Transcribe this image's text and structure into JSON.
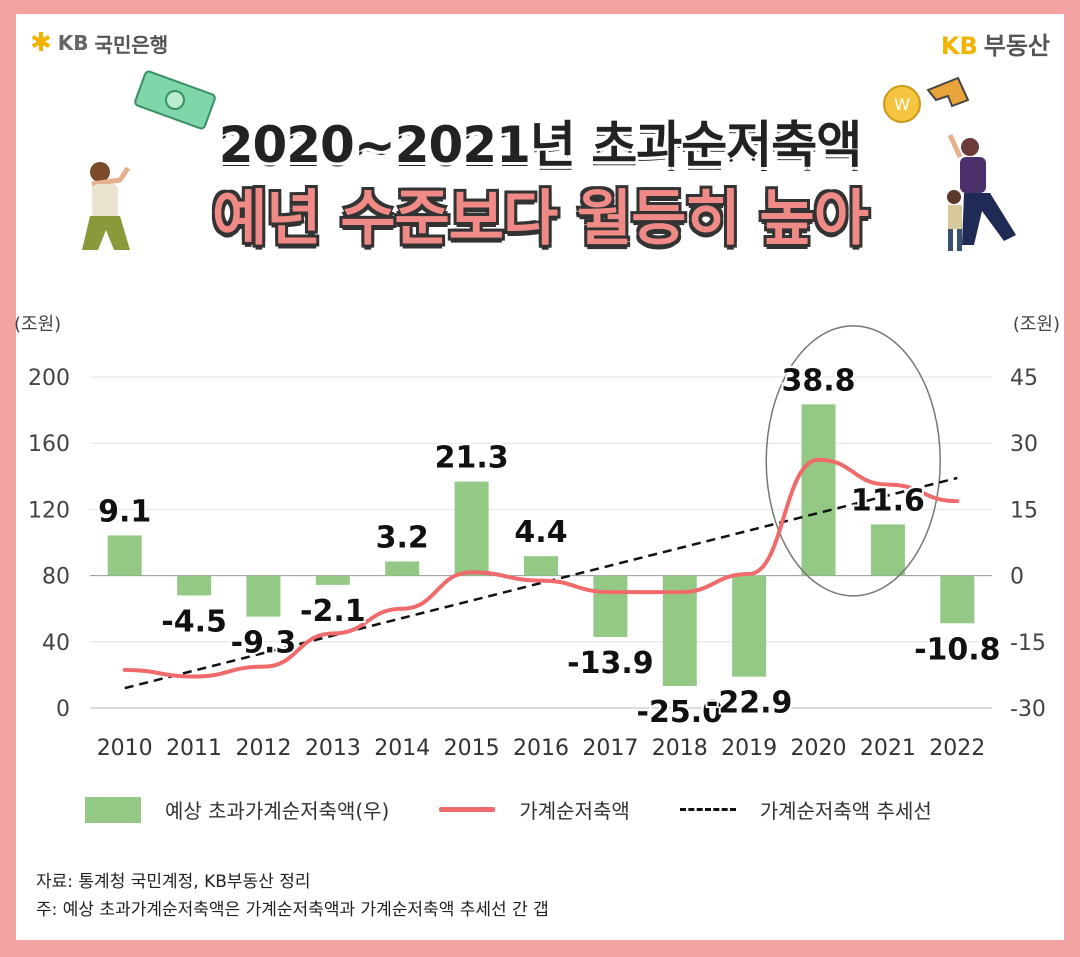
{
  "header": {
    "bank_logo_star": "✱",
    "bank_logo_kb": "KB",
    "bank_logo_name": "국민은행",
    "brand_kb": "KB",
    "brand_name": "부동산"
  },
  "title": {
    "line1": "2020~2021년 초과순저축액",
    "line2": "예년 수준보다 월등히 높아"
  },
  "colors": {
    "bar": "#93c985",
    "line": "#ef6b6b",
    "trend": "#111111",
    "frame": "#f4a3a3"
  },
  "chart_data": {
    "type": "bar+line",
    "left_axis_unit": "(조원)",
    "right_axis_unit": "(조원)",
    "left_axis": {
      "ticks": [
        0,
        40,
        80,
        120,
        160,
        200
      ],
      "tick_labels": [
        "0",
        "40",
        "80",
        "120",
        "160",
        "200"
      ],
      "ylim": [
        0,
        200
      ]
    },
    "right_axis": {
      "ticks": [
        -30,
        -15,
        0,
        15,
        30,
        45
      ],
      "tick_labels": [
        "-30",
        "-15",
        "0",
        "15",
        "30",
        "45"
      ],
      "ylim": [
        -30,
        45
      ]
    },
    "categories": [
      "2010",
      "2011",
      "2012",
      "2013",
      "2014",
      "2015",
      "2016",
      "2017",
      "2018",
      "2019",
      "2020",
      "2021",
      "2022"
    ],
    "series": [
      {
        "name": "예상 초과가계순저축액(우)",
        "type": "bar",
        "axis": "right",
        "values": [
          9.1,
          -4.5,
          -9.3,
          -2.1,
          3.2,
          21.3,
          4.4,
          -13.9,
          -25.0,
          -22.9,
          38.8,
          11.6,
          -10.8
        ],
        "labels": [
          "9.1",
          "-4.5",
          "-9.3",
          "-2.1",
          "3.2",
          "21.3",
          "4.4",
          "-13.9",
          "-25.0",
          "-22.9",
          "38.8",
          "11.6",
          "-10.8"
        ]
      },
      {
        "name": "가계순저축액",
        "type": "line",
        "axis": "left",
        "values": [
          23,
          19,
          25,
          45,
          60,
          82,
          77,
          70,
          70,
          81,
          150,
          135,
          125
        ]
      },
      {
        "name": "가계순저축액 추세선",
        "type": "dashed-line",
        "axis": "left",
        "values": [
          12,
          22,
          33,
          43,
          54,
          65,
          75,
          86,
          96,
          107,
          118,
          128,
          139
        ]
      }
    ],
    "highlight": [
      "2020",
      "2021"
    ],
    "grid": true
  },
  "notes": {
    "source": "자료: 통계청 국민계정, KB부동산 정리",
    "footnote": "주: 예상 초과가계순저축액은 가계순저축액과 가계순저축액 추세선 간 갭"
  }
}
